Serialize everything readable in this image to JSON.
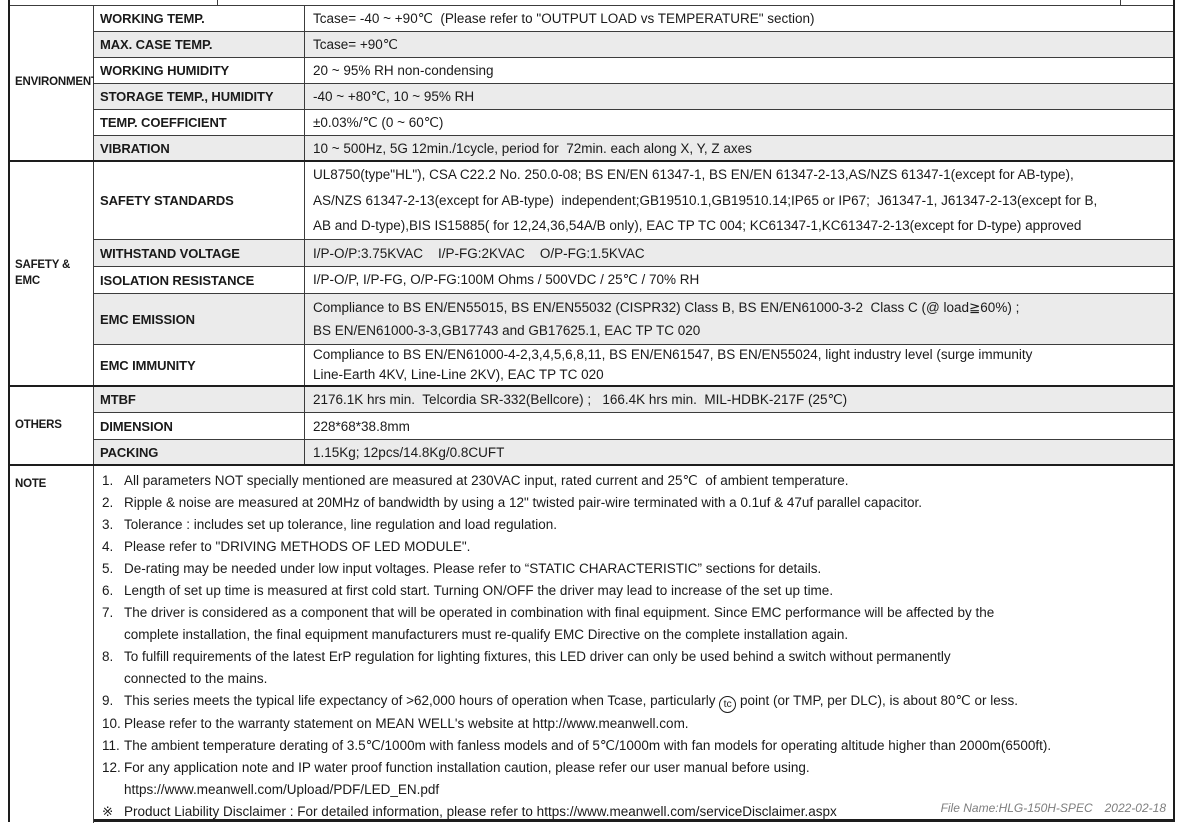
{
  "colors": {
    "row_shade": "#ebebeb",
    "border": "#3c3c3c",
    "border_strong": "#1d1d1d",
    "text": "#1a1a1a",
    "footer_text": "#7e7e7e"
  },
  "table": {
    "sections": {
      "environment": {
        "label": "ENVIRONMENT",
        "rows": {
          "working_temp": {
            "param": "WORKING TEMP.",
            "value": "Tcase= -40 ~ +90℃  (Please refer to \"OUTPUT LOAD vs TEMPERATURE\" section)"
          },
          "max_case_temp": {
            "param": "MAX. CASE TEMP.",
            "value": "Tcase= +90℃"
          },
          "working_humidity": {
            "param": "WORKING HUMIDITY",
            "value": "20 ~ 95% RH non-condensing"
          },
          "storage": {
            "param": "STORAGE TEMP., HUMIDITY",
            "value": "-40 ~ +80℃, 10 ~ 95% RH"
          },
          "temp_coefficient": {
            "param": "TEMP. COEFFICIENT",
            "value": "±0.03%/℃ (0 ~ 60℃)"
          },
          "vibration": {
            "param": "VIBRATION",
            "value": "10 ~ 500Hz, 5G 12min./1cycle, period for  72min. each along X, Y, Z axes"
          }
        }
      },
      "safety_emc": {
        "label": "SAFETY & EMC",
        "rows": {
          "safety_standards": {
            "param": "SAFETY STANDARDS",
            "line1": "UL8750(type\"HL\"), CSA C22.2 No. 250.0-08; BS EN/EN 61347-1, BS EN/EN 61347-2-13,AS/NZS 61347-1(except for AB-type),",
            "line2": "AS/NZS 61347-2-13(except for AB-type)  independent;GB19510.1,GB19510.14;IP65 or IP67;  J61347-1, J61347-2-13(except for B,",
            "line3": "AB and D-type),BIS IS15885( for 12,24,36,54A/B only), EAC TP TC 004; KC61347-1,KC61347-2-13(except for D-type) approved"
          },
          "withstand_voltage": {
            "param": "WITHSTAND VOLTAGE",
            "value": "I/P-O/P:3.75KVAC    I/P-FG:2KVAC    O/P-FG:1.5KVAC"
          },
          "isolation_resistance": {
            "param": "ISOLATION RESISTANCE",
            "value": "I/P-O/P, I/P-FG, O/P-FG:100M Ohms / 500VDC / 25℃ / 70% RH"
          },
          "emc_emission": {
            "param": "EMC EMISSION",
            "line1": "Compliance to BS EN/EN55015, BS EN/EN55032 (CISPR32) Class B, BS EN/EN61000-3-2  Class C (@ load≧60%) ;",
            "line2": "BS EN/EN61000-3-3,GB17743 and GB17625.1, EAC TP TC 020"
          },
          "emc_immunity": {
            "param": "EMC IMMUNITY",
            "line1": "Compliance to BS EN/EN61000-4-2,3,4,5,6,8,11, BS EN/EN61547, BS EN/EN55024, light industry level (surge immunity",
            "line2": "Line-Earth 4KV, Line-Line 2KV), EAC TP TC 020"
          }
        }
      },
      "others": {
        "label": "OTHERS",
        "rows": {
          "mtbf": {
            "param": "MTBF",
            "value": "2176.1K hrs min.  Telcordia SR-332(Bellcore) ;   166.4K hrs min.  MIL-HDBK-217F (25℃)"
          },
          "dimension": {
            "param": "DIMENSION",
            "value": "228*68*38.8mm"
          },
          "packing": {
            "param": "PACKING",
            "value": "1.15Kg; 12pcs/14.8Kg/0.8CUFT"
          }
        }
      },
      "note": {
        "label": "NOTE"
      }
    }
  },
  "notes": [
    {
      "num": "1.",
      "text": "All parameters NOT specially mentioned are measured at 230VAC input, rated current and 25℃  of ambient temperature."
    },
    {
      "num": "2.",
      "text": "Ripple & noise are measured at 20MHz of bandwidth by using a 12\" twisted pair-wire terminated with a 0.1uf & 47uf parallel capacitor."
    },
    {
      "num": "3.",
      "text": "Tolerance : includes set up tolerance, line regulation and load regulation."
    },
    {
      "num": "4.",
      "text": "Please refer to \"DRIVING METHODS OF LED MODULE\"."
    },
    {
      "num": "5.",
      "text": "De-rating may be needed under low input voltages. Please refer to “STATIC CHARACTERISTIC” sections for details."
    },
    {
      "num": "6.",
      "text": "Length of set up time is measured at first cold start. Turning ON/OFF the driver may lead to increase of the set up time."
    },
    {
      "num": "7.",
      "text": "The driver is considered as a component that will be operated in combination with final equipment. Since EMC performance will be affected by the"
    },
    {
      "num": "",
      "text": "complete installation, the final equipment manufacturers must re-qualify EMC Directive on the complete installation again."
    },
    {
      "num": "8.",
      "text": "To fulfill requirements of the latest ErP regulation for lighting fixtures, this LED driver can only be used behind a switch without permanently"
    },
    {
      "num": "",
      "text": "connected to the mains."
    },
    {
      "num": "9.",
      "pre": "This series meets the typical life expectancy of >62,000 hours of operation when Tcase, particularly ",
      "circled": "tc",
      "post": " point (or TMP, per DLC), is about 80℃ or less."
    },
    {
      "num": "10.",
      "text": "Please refer to the warranty statement on MEAN WELL's website at http://www.meanwell.com."
    },
    {
      "num": "11.",
      "text": "The ambient temperature derating of 3.5℃/1000m with fanless models and of 5℃/1000m with fan models for operating altitude higher than 2000m(6500ft)."
    },
    {
      "num": "12.",
      "text": "For any application note and IP water proof function installation caution, please refer our user manual before using."
    },
    {
      "num": "",
      "text": "https://www.meanwell.com/Upload/PDF/LED_EN.pdf"
    },
    {
      "num": "※",
      "text": "Product Liability Disclaimer : For detailed information, please refer to https://www.meanwell.com/serviceDisclaimer.aspx"
    }
  ],
  "footer": {
    "file_name": "File Name:HLG-150H-SPEC",
    "date": "2022-02-18"
  }
}
